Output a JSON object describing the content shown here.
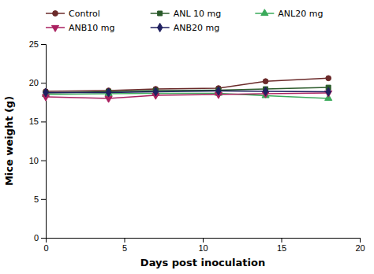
{
  "chart_data": {
    "type": "line",
    "x": [
      0,
      4,
      7,
      11,
      14,
      18
    ],
    "series": [
      {
        "name": "Control",
        "color": "#6B2A2A",
        "marker": "circle",
        "values": [
          18.9,
          19.0,
          19.2,
          19.3,
          20.2,
          20.6
        ]
      },
      {
        "name": "ANL 10 mg",
        "color": "#2A5A2A",
        "marker": "square",
        "values": [
          18.7,
          18.85,
          19.0,
          19.05,
          19.2,
          19.4
        ]
      },
      {
        "name": "ANL20 mg",
        "color": "#3AAA5A",
        "marker": "triangle-up",
        "values": [
          18.5,
          18.6,
          18.65,
          18.65,
          18.35,
          18.0
        ]
      },
      {
        "name": "ANB10 mg",
        "color": "#AA2060",
        "marker": "triangle-down",
        "values": [
          18.2,
          18.0,
          18.4,
          18.5,
          18.6,
          18.7
        ]
      },
      {
        "name": "ANB20 mg",
        "color": "#202060",
        "marker": "diamond",
        "values": [
          18.75,
          18.75,
          18.85,
          18.95,
          18.9,
          18.85
        ]
      }
    ],
    "x_label": "Days post inoculation",
    "y_label": "Mice weight (g)",
    "xlim": [
      0,
      20
    ],
    "ylim": [
      0,
      25
    ],
    "xticks": [
      0,
      5,
      10,
      15,
      20
    ],
    "yticks": [
      0,
      5,
      10,
      15,
      20,
      25
    ],
    "grid": false,
    "legend": "upper left"
  }
}
